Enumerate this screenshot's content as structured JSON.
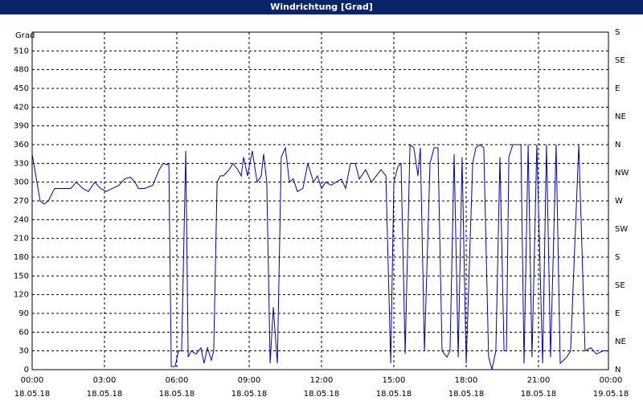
{
  "chart_data": {
    "type": "line",
    "title": "Windrichtung [Grad]",
    "y_label": "Grad",
    "xlim": [
      0,
      24
    ],
    "xticks": [
      {
        "value": 0,
        "label": "00:00"
      },
      {
        "value": 3,
        "label": "03:00"
      },
      {
        "value": 6,
        "label": "06:00"
      },
      {
        "value": 9,
        "label": "09:00"
      },
      {
        "value": 12,
        "label": "12:00"
      },
      {
        "value": 15,
        "label": "15:00"
      },
      {
        "value": 18,
        "label": "18:00"
      },
      {
        "value": 21,
        "label": "21:00"
      },
      {
        "value": 24,
        "label": "00:00"
      }
    ],
    "xtick_dates": [
      "18.05.18",
      "18.05.18",
      "18.05.18",
      "18.05.18",
      "18.05.18",
      "18.05.18",
      "18.05.18",
      "18.05.18",
      "19.05.18"
    ],
    "ylim": [
      0,
      540
    ],
    "yticks": [
      0,
      30,
      60,
      90,
      120,
      150,
      180,
      210,
      240,
      270,
      300,
      330,
      360,
      390,
      420,
      450,
      480,
      510
    ],
    "y2lim": [
      0,
      540
    ],
    "y2ticks": [
      {
        "value": 0,
        "label": "N"
      },
      {
        "value": 45,
        "label": "NE"
      },
      {
        "value": 90,
        "label": "E"
      },
      {
        "value": 135,
        "label": "SE"
      },
      {
        "value": 180,
        "label": "S"
      },
      {
        "value": 225,
        "label": "SW"
      },
      {
        "value": 270,
        "label": "W"
      },
      {
        "value": 315,
        "label": "NW"
      },
      {
        "value": 360,
        "label": "N"
      },
      {
        "value": 405,
        "label": "NE"
      },
      {
        "value": 450,
        "label": "E"
      },
      {
        "value": 495,
        "label": "SE"
      },
      {
        "value": 540,
        "label": "S"
      }
    ],
    "grid": true,
    "x": [
      0,
      0.33,
      0.5,
      0.67,
      0.93,
      1.33,
      1.6,
      1.83,
      2.1,
      2.33,
      2.6,
      2.83,
      3.07,
      3.33,
      3.6,
      3.83,
      4.07,
      4.27,
      4.4,
      4.67,
      5,
      5.27,
      5.43,
      5.6,
      5.67,
      5.77,
      5.93,
      6.07,
      6.2,
      6.37,
      6.47,
      6.6,
      6.8,
      7,
      7.13,
      7.27,
      7.43,
      7.53,
      7.67,
      7.8,
      7.93,
      8.17,
      8.33,
      8.53,
      8.67,
      8.77,
      8.93,
      9.13,
      9.33,
      9.5,
      9.6,
      9.73,
      9.87,
      10,
      10.17,
      10.33,
      10.5,
      10.67,
      10.83,
      11,
      11.23,
      11.43,
      11.67,
      11.83,
      12,
      12.17,
      12.4,
      12.6,
      12.83,
      13,
      13.2,
      13.4,
      13.57,
      13.83,
      14.07,
      14.27,
      14.47,
      14.67,
      14.87,
      15,
      15.17,
      15.3,
      15.47,
      15.67,
      15.83,
      16,
      16.1,
      16.27,
      16.5,
      16.67,
      16.83,
      17,
      17.2,
      17.33,
      17.5,
      17.67,
      17.83,
      18,
      18.27,
      18.4,
      18.57,
      18.73,
      18.93,
      19.07,
      19.23,
      19.4,
      19.57,
      19.67,
      19.77,
      19.93,
      20.27,
      20.4,
      20.57,
      20.73,
      20.93,
      21.17,
      21.33,
      21.5,
      21.73,
      21.9,
      22.17,
      22.33,
      22.67,
      22.93,
      23.17,
      23.4,
      23.67,
      23.9
    ],
    "series": [
      {
        "name": "Windrichtung",
        "color": "#0000c0",
        "values": [
          345,
          270,
          265,
          270,
          290,
          290,
          290,
          300,
          290,
          285,
          300,
          290,
          285,
          290,
          295,
          305,
          308,
          300,
          290,
          290,
          295,
          320,
          330,
          328,
          330,
          5,
          5,
          30,
          30,
          350,
          20,
          30,
          25,
          35,
          10,
          35,
          15,
          30,
          300,
          310,
          310,
          320,
          330,
          320,
          310,
          340,
          310,
          350,
          300,
          310,
          345,
          300,
          10,
          100,
          10,
          340,
          355,
          300,
          305,
          285,
          290,
          330,
          300,
          310,
          290,
          300,
          295,
          300,
          305,
          290,
          330,
          330,
          305,
          320,
          300,
          310,
          320,
          310,
          10,
          300,
          325,
          330,
          25,
          360,
          355,
          310,
          355,
          30,
          330,
          355,
          355,
          30,
          20,
          30,
          345,
          20,
          340,
          10,
          330,
          355,
          360,
          355,
          20,
          0,
          30,
          340,
          30,
          30,
          340,
          360,
          360,
          10,
          360,
          20,
          360,
          10,
          360,
          20,
          360,
          10,
          20,
          30,
          360,
          30,
          35,
          25,
          30,
          30
        ]
      }
    ]
  }
}
